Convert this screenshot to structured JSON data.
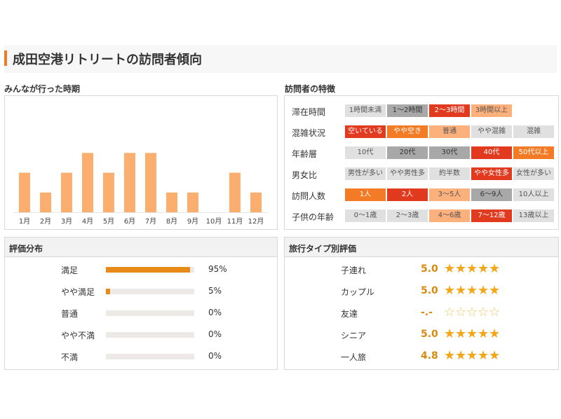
{
  "page": {
    "title": "成田空港リトリートの訪問者傾向"
  },
  "visit_period": {
    "label": "みんなが行った時期",
    "chart_data": {
      "type": "bar",
      "categories": [
        "1月",
        "2月",
        "3月",
        "4月",
        "5月",
        "6月",
        "7月",
        "8月",
        "9月",
        "10月",
        "11月",
        "12月"
      ],
      "values": [
        2,
        1,
        2,
        3,
        2,
        3,
        3,
        1,
        1,
        0,
        2,
        1
      ],
      "ylim": [
        0,
        3.4
      ],
      "bar_color": "#fcae6e"
    }
  },
  "features": {
    "label": "訪問者の特徴",
    "rows": [
      {
        "label": "滞在時間",
        "cells": [
          {
            "text": "1時間未満",
            "level": 0
          },
          {
            "text": "1〜2時間",
            "level": 1
          },
          {
            "text": "2〜3時間",
            "level": 4
          },
          {
            "text": "3時間以上",
            "level": 2
          }
        ]
      },
      {
        "label": "混雑状況",
        "cells": [
          {
            "text": "空いている",
            "level": 4
          },
          {
            "text": "やや空き",
            "level": 3
          },
          {
            "text": "普通",
            "level": 2
          },
          {
            "text": "やや混雑",
            "level": 0
          },
          {
            "text": "混雑",
            "level": 0
          }
        ]
      },
      {
        "label": "年齢層",
        "cells": [
          {
            "text": "10代",
            "level": 0
          },
          {
            "text": "20代",
            "level": 1
          },
          {
            "text": "30代",
            "level": 1
          },
          {
            "text": "40代",
            "level": 4
          },
          {
            "text": "50代以上",
            "level": 3
          }
        ]
      },
      {
        "label": "男女比",
        "cells": [
          {
            "text": "男性が多い",
            "level": 0
          },
          {
            "text": "やや男性多",
            "level": 0
          },
          {
            "text": "約半数",
            "level": 0
          },
          {
            "text": "やや女性多",
            "level": 4
          },
          {
            "text": "女性が多い",
            "level": 0
          }
        ]
      },
      {
        "label": "訪問人数",
        "cells": [
          {
            "text": "1人",
            "level": 3
          },
          {
            "text": "2人",
            "level": 4
          },
          {
            "text": "3〜5人",
            "level": 2
          },
          {
            "text": "6〜9人",
            "level": 1
          },
          {
            "text": "10人以上",
            "level": 0
          }
        ]
      },
      {
        "label": "子供の年齢",
        "cells": [
          {
            "text": "0〜1歳",
            "level": 0
          },
          {
            "text": "2〜3歳",
            "level": 0
          },
          {
            "text": "4〜6歳",
            "level": 2
          },
          {
            "text": "7〜12歳",
            "level": 4
          },
          {
            "text": "13歳以上",
            "level": 0
          }
        ]
      }
    ]
  },
  "rating_distribution": {
    "label": "評価分布",
    "rows": [
      {
        "label": "満足",
        "percent_text": "95%",
        "fraction": 0.95
      },
      {
        "label": "やや満足",
        "percent_text": "5%",
        "fraction": 0.05
      },
      {
        "label": "普通",
        "percent_text": "0%",
        "fraction": 0
      },
      {
        "label": "やや不満",
        "percent_text": "0%",
        "fraction": 0
      },
      {
        "label": "不満",
        "percent_text": "0%",
        "fraction": 0
      }
    ]
  },
  "trip_type_ratings": {
    "label": "旅行タイプ別評価",
    "rows": [
      {
        "label": "子連れ",
        "score": "5.0",
        "stars": 5
      },
      {
        "label": "カップル",
        "score": "5.0",
        "stars": 5
      },
      {
        "label": "友達",
        "score": "-.-",
        "stars": 0
      },
      {
        "label": "シニア",
        "score": "5.0",
        "stars": 5
      },
      {
        "label": "一人旅",
        "score": "4.8",
        "stars": 5
      }
    ]
  },
  "colors": {
    "accent": "#f07b23",
    "rating_bar": "#e88a17",
    "star": "#f2a618"
  }
}
